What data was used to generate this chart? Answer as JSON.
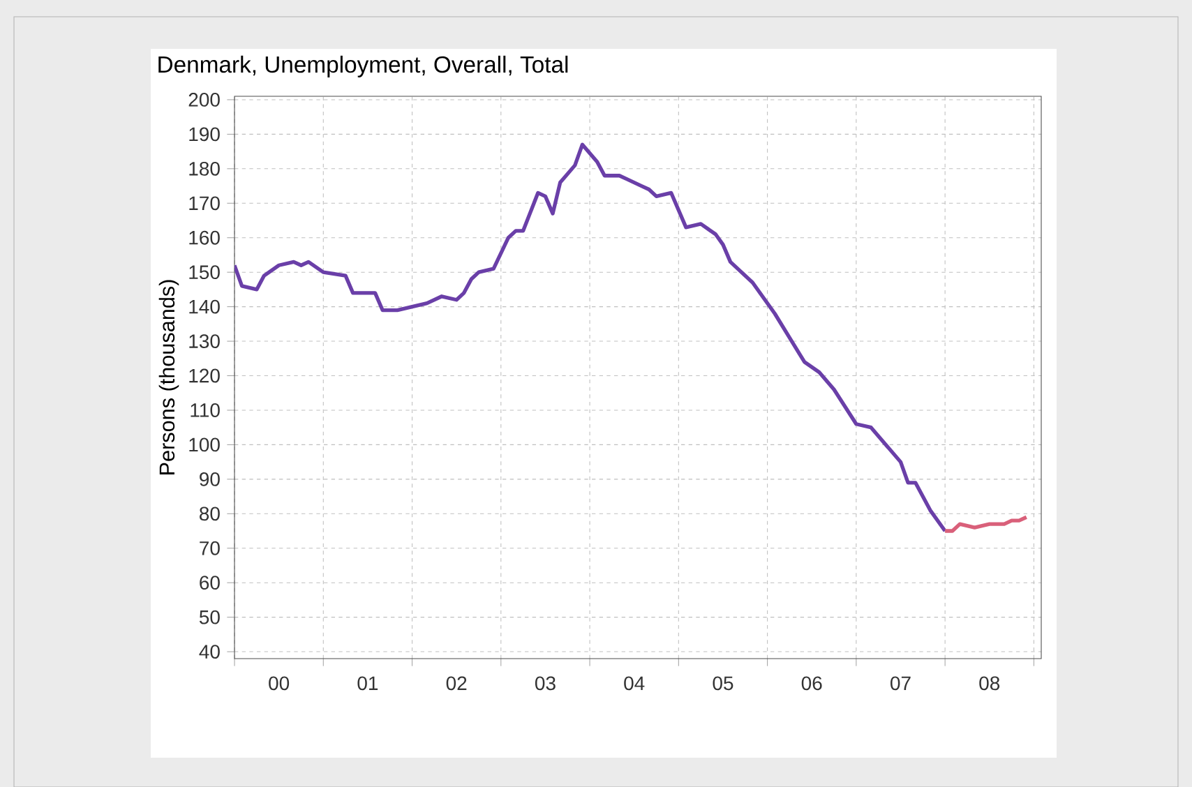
{
  "chart_data": {
    "type": "line",
    "title": "Denmark, Unemployment, Overall, Total",
    "ylabel": "Persons (thousands)",
    "xlim": [
      "2000-01",
      "2009-02"
    ],
    "ylim": [
      38,
      201
    ],
    "xticks": [
      {
        "value": "2000-01",
        "label": null
      },
      {
        "value": "2000-07",
        "label": "00"
      },
      {
        "value": "2001-01",
        "label": null
      },
      {
        "value": "2001-07",
        "label": "01"
      },
      {
        "value": "2002-01",
        "label": null
      },
      {
        "value": "2002-07",
        "label": "02"
      },
      {
        "value": "2003-01",
        "label": null
      },
      {
        "value": "2003-07",
        "label": "03"
      },
      {
        "value": "2004-01",
        "label": null
      },
      {
        "value": "2004-07",
        "label": "04"
      },
      {
        "value": "2005-01",
        "label": null
      },
      {
        "value": "2005-07",
        "label": "05"
      },
      {
        "value": "2006-01",
        "label": null
      },
      {
        "value": "2006-07",
        "label": "06"
      },
      {
        "value": "2007-01",
        "label": null
      },
      {
        "value": "2007-07",
        "label": "07"
      },
      {
        "value": "2008-01",
        "label": null
      },
      {
        "value": "2008-07",
        "label": "08"
      },
      {
        "value": "2009-01",
        "label": null
      }
    ],
    "yticks": [
      40,
      50,
      60,
      70,
      80,
      90,
      100,
      110,
      120,
      130,
      140,
      150,
      160,
      170,
      180,
      190,
      200
    ],
    "grid": true,
    "series": [
      {
        "color": "#6a3fa8",
        "x": [
          "2000-01",
          "2000-02",
          "2000-04",
          "2000-05",
          "2000-07",
          "2000-09",
          "2000-10",
          "2000-11",
          "2001-01",
          "2001-04",
          "2001-05",
          "2001-08",
          "2001-09",
          "2001-11",
          "2002-01",
          "2002-03",
          "2002-05",
          "2002-07",
          "2002-08",
          "2002-09",
          "2002-10",
          "2002-12",
          "2003-02",
          "2003-03",
          "2003-04",
          "2003-06",
          "2003-07",
          "2003-08",
          "2003-09",
          "2003-11",
          "2003-12",
          "2004-02",
          "2004-03",
          "2004-05",
          "2004-06",
          "2004-08",
          "2004-09",
          "2004-10",
          "2004-12",
          "2005-02",
          "2005-04",
          "2005-06",
          "2005-07",
          "2005-08",
          "2005-11",
          "2006-02",
          "2006-04",
          "2006-06",
          "2006-08",
          "2006-10",
          "2007-01",
          "2007-03",
          "2007-05",
          "2007-07",
          "2007-08",
          "2007-09",
          "2007-11",
          "2008-01"
        ],
        "values": [
          152,
          146,
          145,
          149,
          152,
          153,
          152,
          153,
          150,
          149,
          144,
          144,
          139,
          139,
          140,
          141,
          143,
          142,
          144,
          148,
          150,
          151,
          160,
          162,
          162,
          173,
          172,
          167,
          176,
          181,
          187,
          182,
          178,
          178,
          177,
          175,
          174,
          172,
          173,
          163,
          164,
          161,
          158,
          153,
          147,
          138,
          131,
          124,
          121,
          116,
          106,
          105,
          100,
          95,
          89,
          89,
          81,
          75
        ]
      },
      {
        "color": "#d9607a",
        "x": [
          "2008-01",
          "2008-02",
          "2008-03",
          "2008-05",
          "2008-07",
          "2008-09",
          "2008-10",
          "2008-11",
          "2008-12"
        ],
        "values": [
          75,
          75,
          77,
          76,
          77,
          77,
          78,
          78,
          79
        ]
      }
    ]
  }
}
